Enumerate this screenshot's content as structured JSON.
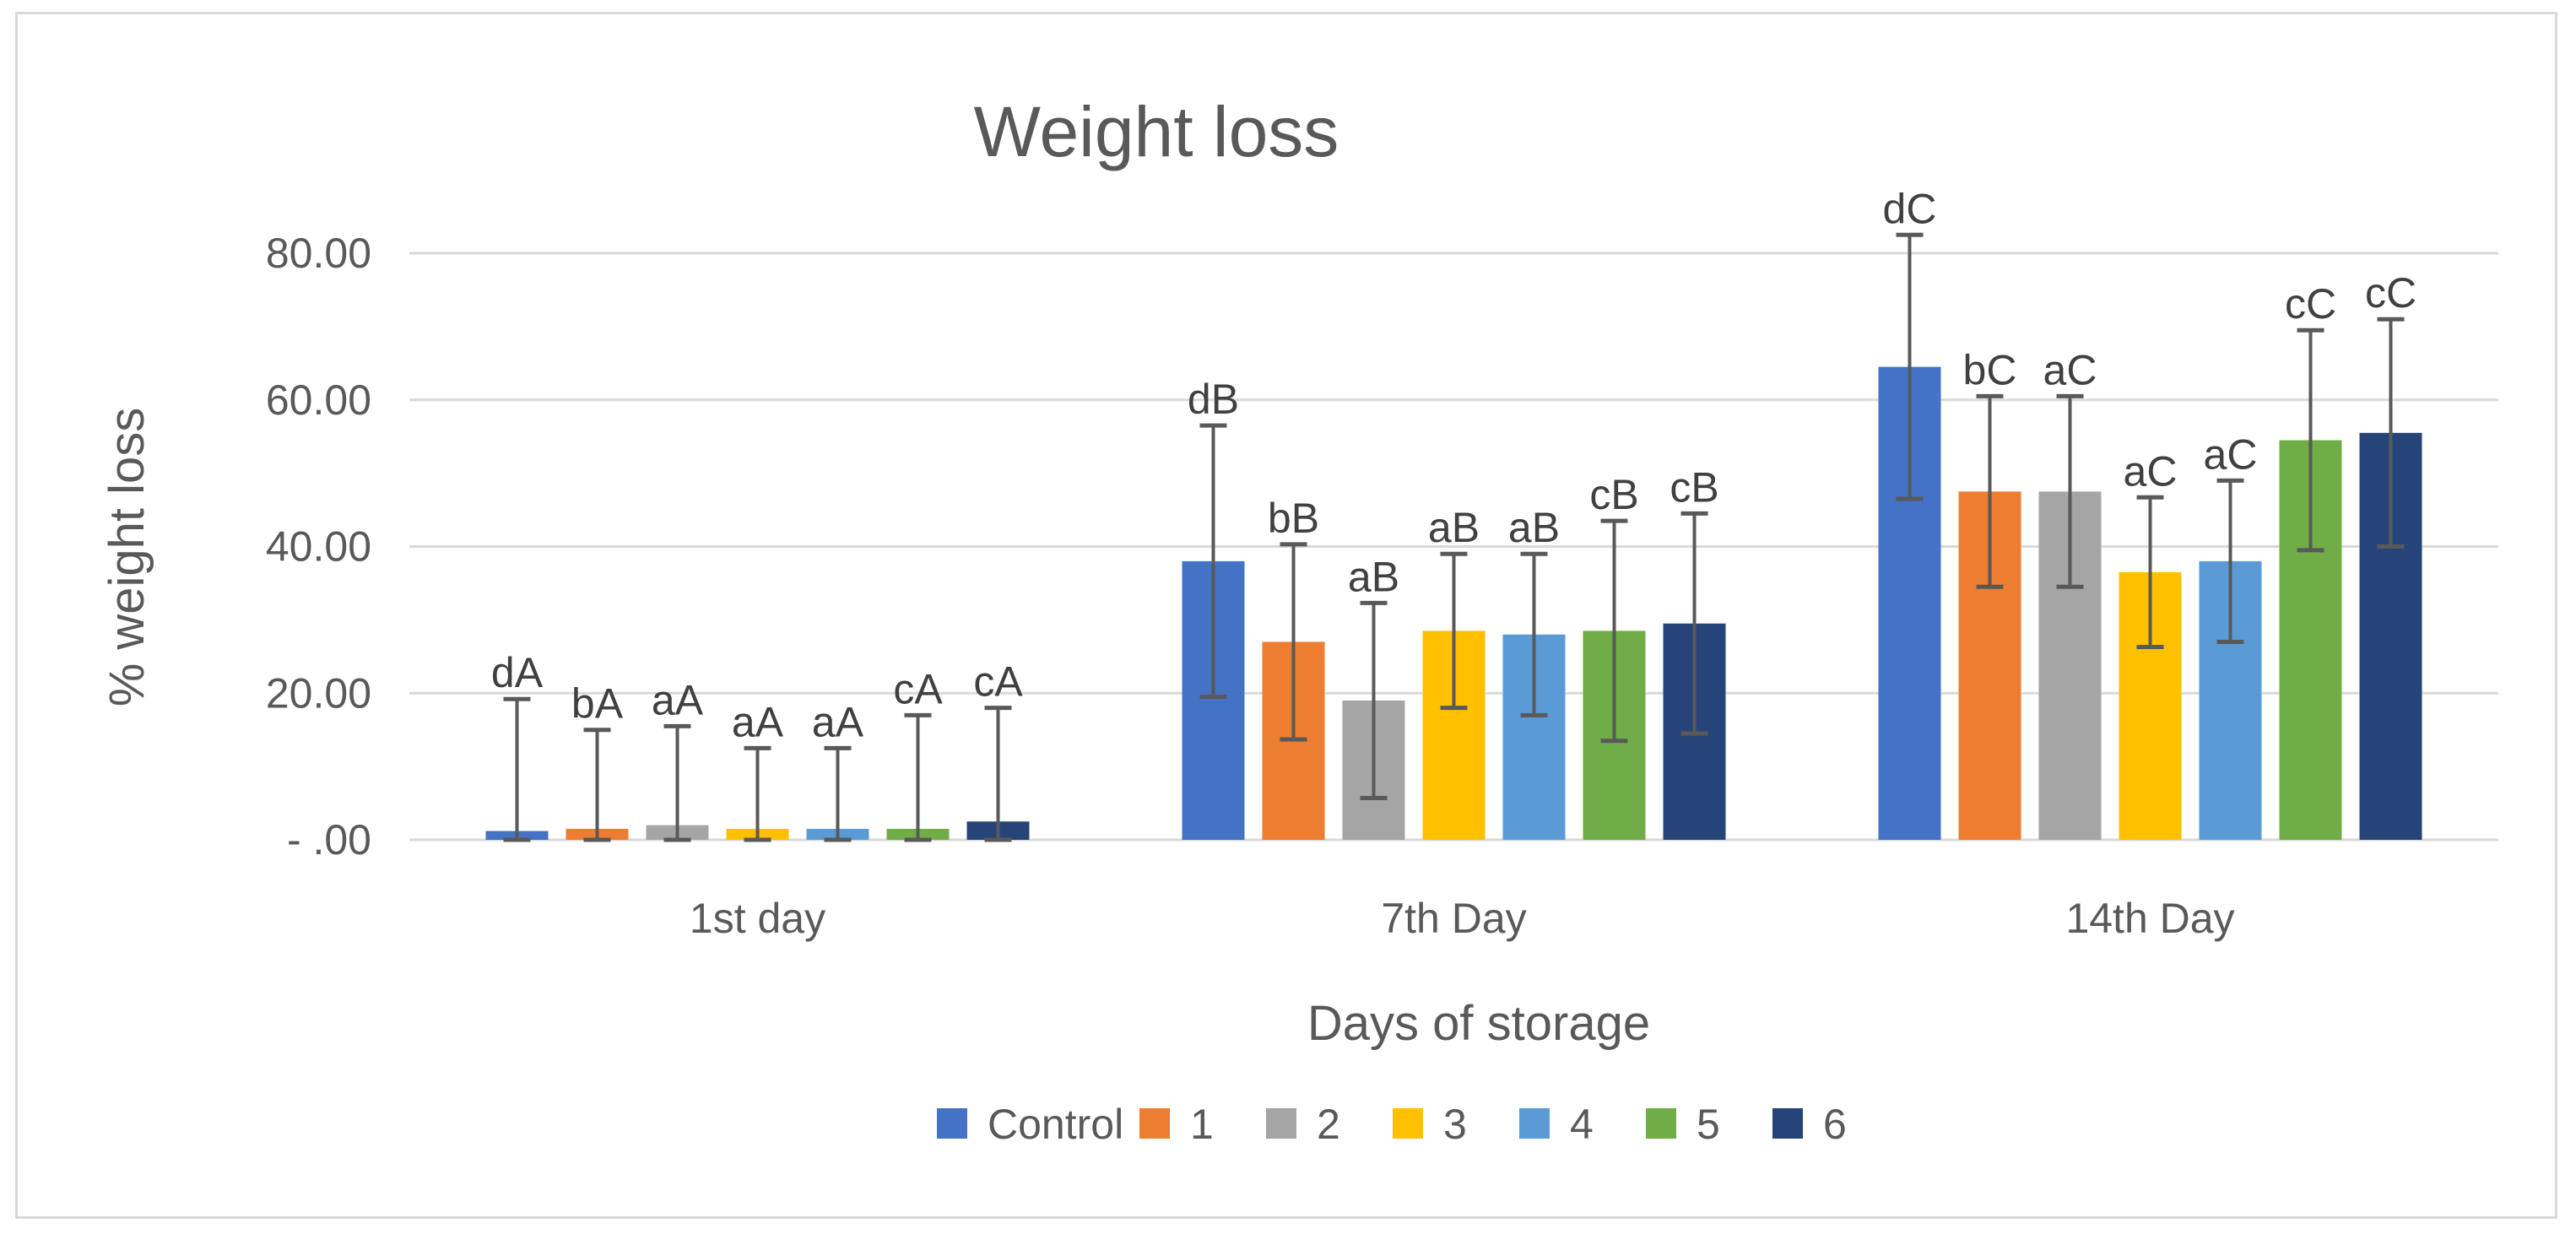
{
  "chart_data": {
    "type": "bar",
    "title": "Weight loss",
    "xlabel": "Days of storage",
    "ylabel": "% weight loss",
    "ylim": [
      0,
      80
    ],
    "yticks": [
      {
        "value": 0,
        "label": "-   .00"
      },
      {
        "value": 20,
        "label": "20.00"
      },
      {
        "value": 40,
        "label": "40.00"
      },
      {
        "value": 60,
        "label": "60.00"
      },
      {
        "value": 80,
        "label": "80.00"
      }
    ],
    "grid": true,
    "legend_position": "bottom",
    "categories": [
      "1st day",
      "7th Day",
      "14th Day"
    ],
    "series": [
      {
        "name": "Control",
        "color": "#4472c4",
        "values": [
          1.2,
          38.0,
          64.5
        ],
        "errors": [
          18.0,
          18.5,
          18.0
        ],
        "labels": [
          "dA",
          "dB",
          "dC"
        ]
      },
      {
        "name": "1",
        "color": "#ed7d31",
        "values": [
          1.5,
          27.0,
          47.5
        ],
        "errors": [
          13.5,
          13.3,
          13.0
        ],
        "labels": [
          "bA",
          "bB",
          "bC"
        ]
      },
      {
        "name": "2",
        "color": "#a5a5a5",
        "values": [
          2.0,
          19.0,
          47.5
        ],
        "errors": [
          13.5,
          13.3,
          13.0
        ],
        "labels": [
          "aA",
          "aB",
          "aC"
        ]
      },
      {
        "name": "3",
        "color": "#ffc000",
        "values": [
          1.5,
          28.5,
          36.5
        ],
        "errors": [
          11.0,
          10.5,
          10.2
        ],
        "labels": [
          "aA",
          "aB",
          "aC"
        ]
      },
      {
        "name": "4",
        "color": "#5b9bd5",
        "values": [
          1.5,
          28.0,
          38.0
        ],
        "errors": [
          11.0,
          11.0,
          11.0
        ],
        "labels": [
          "aA",
          "aB",
          "aC"
        ]
      },
      {
        "name": "5",
        "color": "#70ad47",
        "values": [
          1.5,
          28.5,
          54.5
        ],
        "errors": [
          15.5,
          15.0,
          15.0
        ],
        "labels": [
          "cA",
          "cB",
          "cC"
        ]
      },
      {
        "name": "6",
        "color": "#264478",
        "values": [
          2.5,
          29.5,
          55.5
        ],
        "errors": [
          15.5,
          15.0,
          15.5
        ],
        "labels": [
          "cA",
          "cB",
          "cC"
        ]
      }
    ]
  }
}
